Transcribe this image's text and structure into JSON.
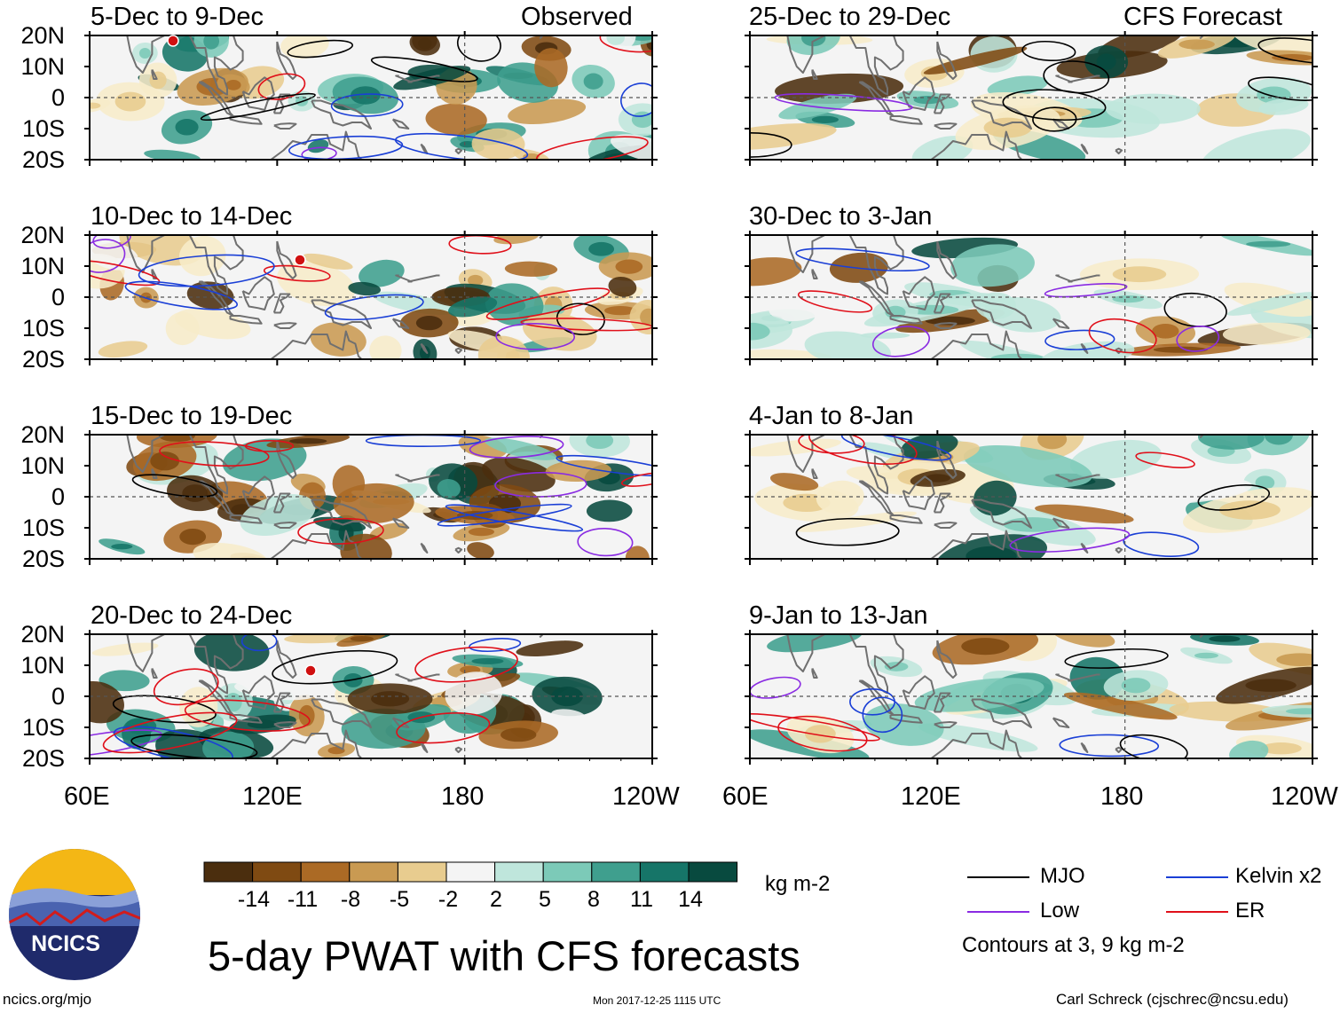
{
  "title": "5-day PWAT with CFS forecasts",
  "chart_data": {
    "type": "heatmap",
    "title": "5-day PWAT with CFS forecasts",
    "variable_units": "kg m-2",
    "x_ticks": [
      "60E",
      "120E",
      "180",
      "120W"
    ],
    "x_range": [
      60,
      240
    ],
    "y_ticks": [
      "20N",
      "10N",
      "0",
      "10S",
      "20S"
    ],
    "y_range": [
      -20,
      20
    ],
    "column_labels": {
      "observed": "Observed",
      "forecast": "CFS Forecast"
    },
    "panels": [
      {
        "period": "5-Dec to 9-Dec",
        "source": "Observed"
      },
      {
        "period": "10-Dec to 14-Dec",
        "source": "Observed"
      },
      {
        "period": "15-Dec to 19-Dec",
        "source": "Observed"
      },
      {
        "period": "20-Dec to 24-Dec",
        "source": "Observed"
      },
      {
        "period": "25-Dec to 29-Dec",
        "source": "CFS Forecast"
      },
      {
        "period": "30-Dec to 3-Jan",
        "source": "CFS Forecast"
      },
      {
        "period": "4-Jan to 8-Jan",
        "source": "CFS Forecast"
      },
      {
        "period": "9-Jan to 13-Jan",
        "source": "CFS Forecast"
      }
    ],
    "colorbar": {
      "labels": [
        "-14",
        "-11",
        "-8",
        "-5",
        "-2",
        "2",
        "5",
        "8",
        "11",
        "14"
      ],
      "colors": [
        "#4b2e0e",
        "#7f4a12",
        "#ab6a25",
        "#c99a52",
        "#e8cc8f",
        "#f7ecc9",
        "#f4f4f4",
        "#bfe6dc",
        "#7ccab8",
        "#3f9f8e",
        "#167568",
        "#084a3f"
      ],
      "units": "kg m-2"
    },
    "contour_legend": [
      {
        "name": "MJO",
        "color": "#000000"
      },
      {
        "name": "Kelvin x2",
        "color": "#1a3fd6"
      },
      {
        "name": "Low",
        "color": "#8a2be2"
      },
      {
        "name": "ER",
        "color": "#e0101a"
      }
    ],
    "contour_note": "Contours at 3, 9 kg m-2"
  },
  "footer": {
    "logo_text": "NCICS",
    "url": "ncics.org/mjo",
    "timestamp": "Mon 2017-12-25 1115 UTC",
    "credit": "Carl Schreck (cjschrec@ncsu.edu)"
  }
}
